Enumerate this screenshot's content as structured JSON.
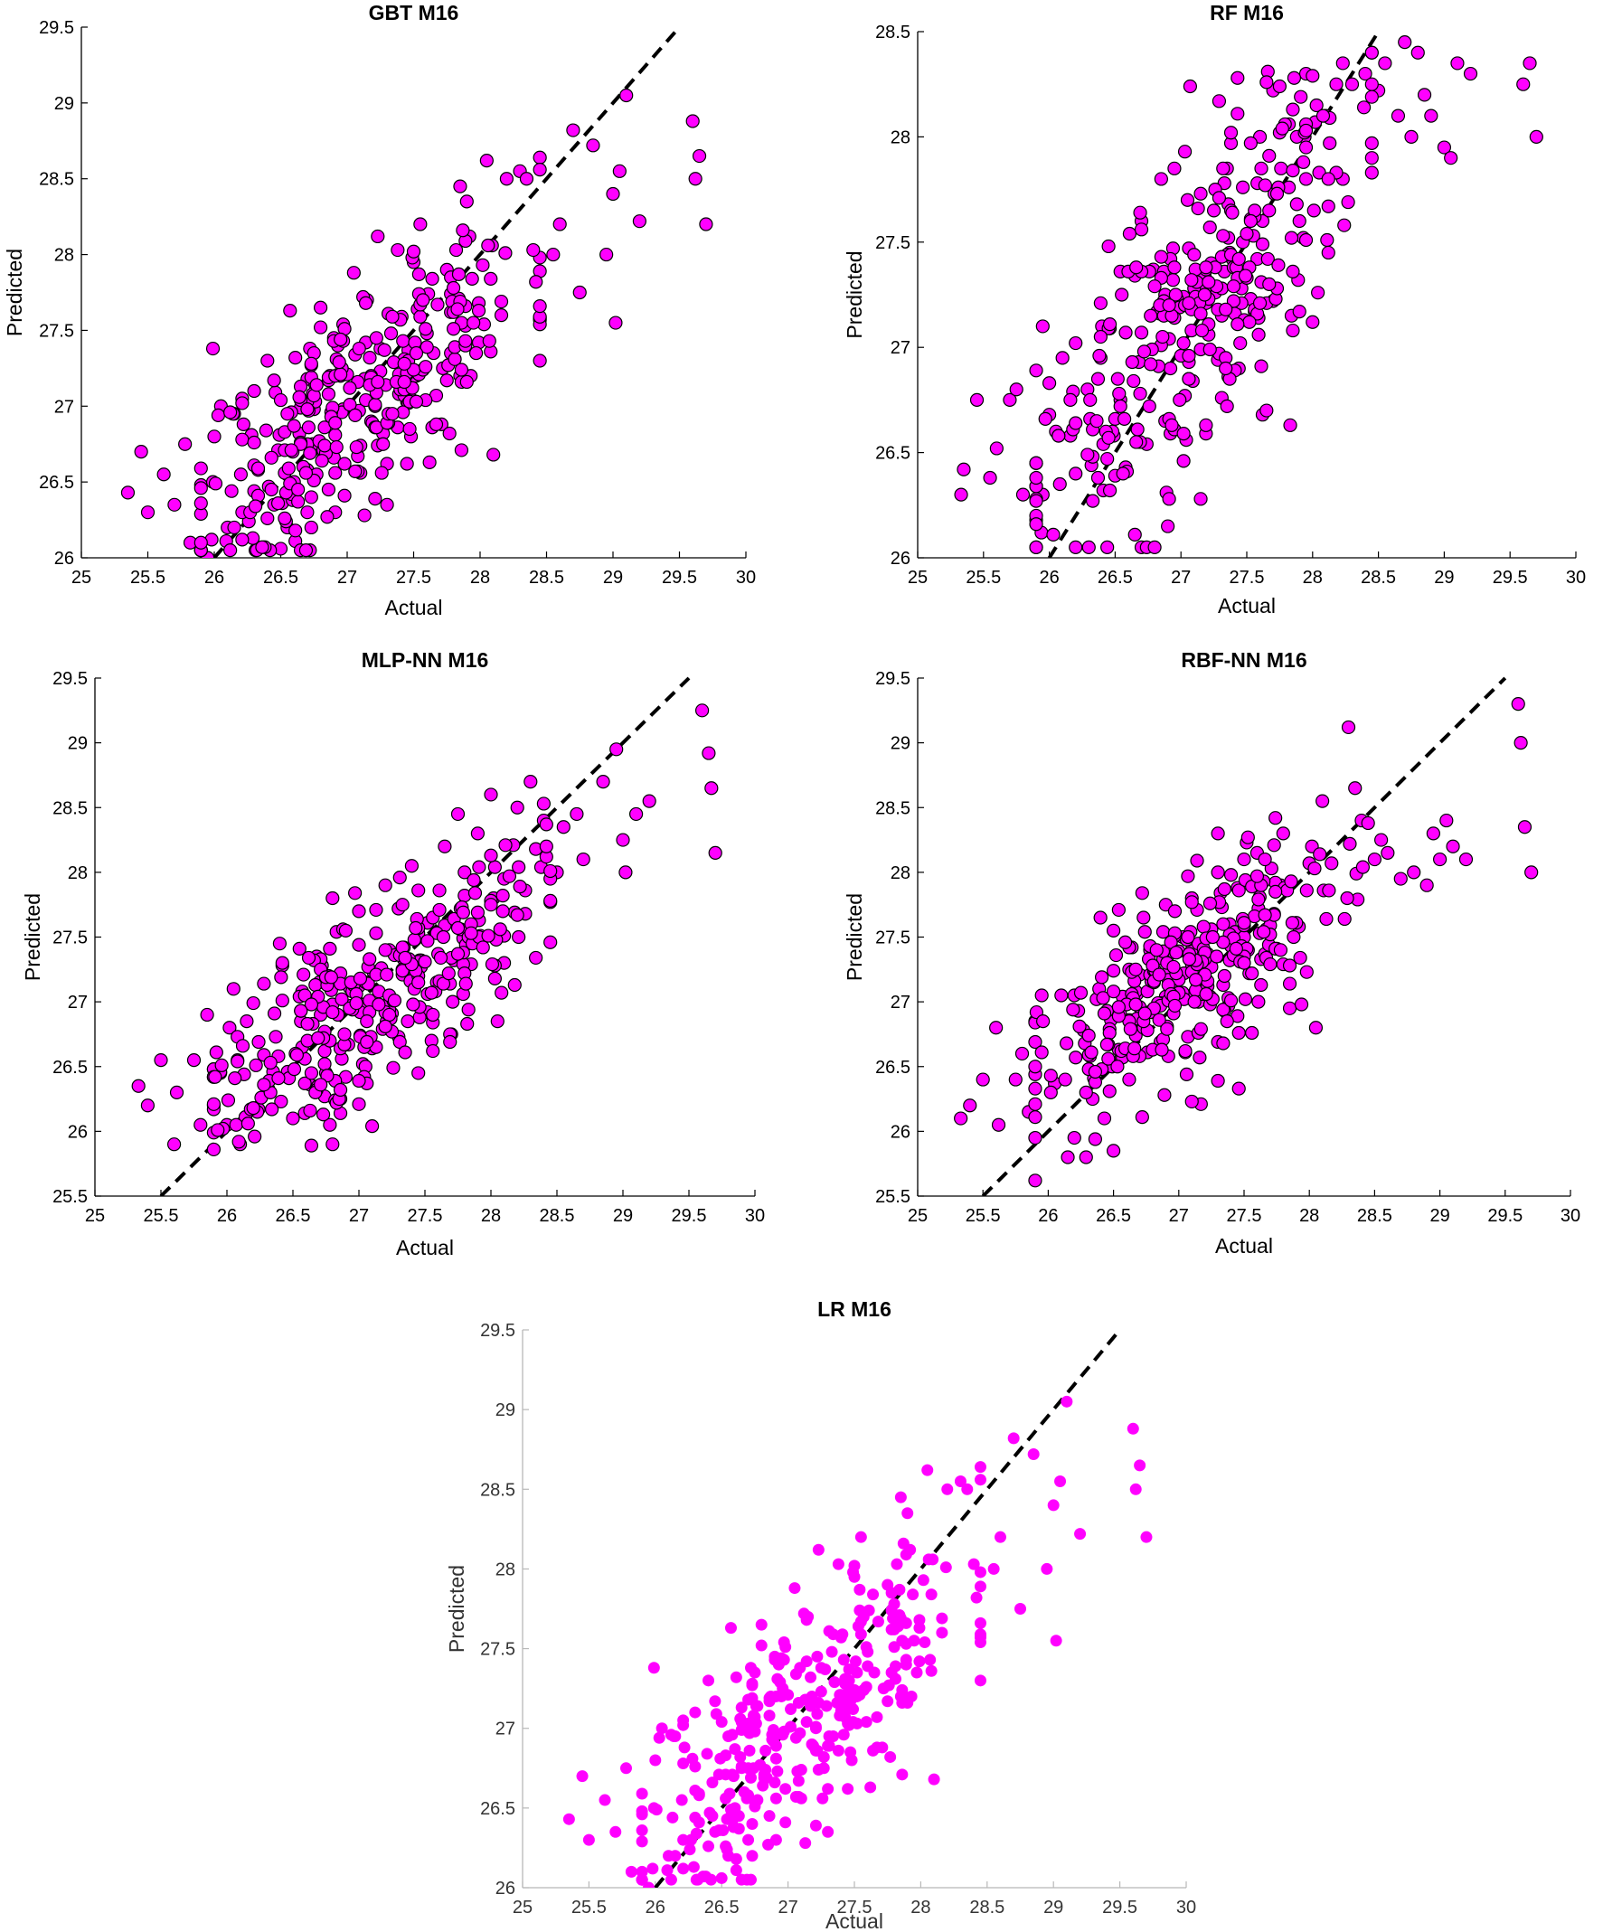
{
  "chart_data": [
    {
      "type": "scatter",
      "title": "GBT M16",
      "xlabel": "Actual",
      "ylabel": "Predicted",
      "xlim": [
        25,
        30
      ],
      "ylim": [
        26,
        29.5
      ],
      "xticks": [
        "25",
        "25.5",
        "26",
        "26.5",
        "27",
        "27.5",
        "28",
        "28.5",
        "29",
        "29.5",
        "30"
      ],
      "yticks": [
        "26",
        "26.5",
        "27",
        "27.5",
        "28",
        "28.5",
        "29",
        "29.5"
      ],
      "reference_line": "y = x (dashed)",
      "marker_color": "#ff00ff",
      "marker_edge": "#000000",
      "seed": 11,
      "points": [
        [
          25.35,
          26.43
        ],
        [
          25.45,
          26.7
        ],
        [
          25.5,
          26.3
        ],
        [
          25.62,
          26.55
        ],
        [
          25.7,
          26.35
        ],
        [
          25.78,
          26.75
        ],
        [
          25.82,
          26.1
        ],
        [
          25.9,
          26.48
        ],
        [
          25.95,
          26.0
        ],
        [
          26.0,
          26.8
        ],
        [
          26.05,
          27.0
        ],
        [
          26.1,
          26.2
        ],
        [
          26.15,
          26.95
        ],
        [
          26.2,
          26.55
        ],
        [
          26.3,
          27.1
        ],
        [
          26.4,
          27.3
        ],
        [
          26.45,
          26.35
        ],
        [
          26.55,
          26.2
        ],
        [
          26.7,
          27.18
        ],
        [
          26.72,
          26.05
        ],
        [
          26.8,
          27.65
        ],
        [
          26.9,
          27.45
        ],
        [
          27.05,
          27.88
        ],
        [
          27.15,
          27.7
        ],
        [
          27.45,
          26.62
        ],
        [
          27.5,
          27.95
        ],
        [
          27.55,
          28.2
        ],
        [
          27.75,
          27.9
        ],
        [
          27.85,
          28.45
        ],
        [
          27.9,
          28.35
        ],
        [
          28.05,
          28.62
        ],
        [
          28.1,
          26.68
        ],
        [
          28.2,
          28.5
        ],
        [
          28.3,
          28.55
        ],
        [
          28.35,
          28.5
        ],
        [
          28.45,
          27.3
        ],
        [
          28.55,
          28.0
        ],
        [
          28.6,
          28.2
        ],
        [
          28.7,
          28.82
        ],
        [
          28.75,
          27.75
        ],
        [
          28.85,
          28.72
        ],
        [
          28.95,
          28.0
        ],
        [
          29.0,
          28.4
        ],
        [
          29.02,
          27.55
        ],
        [
          29.05,
          28.55
        ],
        [
          29.1,
          29.05
        ],
        [
          29.2,
          28.22
        ],
        [
          29.6,
          28.88
        ],
        [
          29.62,
          28.5
        ],
        [
          29.65,
          28.65
        ],
        [
          29.7,
          28.2
        ]
      ]
    },
    {
      "type": "scatter",
      "title": "RF M16",
      "xlabel": "Actual",
      "ylabel": "Predicted",
      "xlim": [
        25,
        30
      ],
      "ylim": [
        26,
        28.5
      ],
      "xticks": [
        "25",
        "25.5",
        "26",
        "26.5",
        "27",
        "27.5",
        "28",
        "28.5",
        "29",
        "29.5",
        "30"
      ],
      "yticks": [
        "26",
        "26.5",
        "27",
        "27.5",
        "28",
        "28.5"
      ],
      "reference_line": "y = x (dashed)",
      "marker_color": "#ff00ff",
      "marker_edge": "#000000",
      "seed": 23,
      "points": [
        [
          25.33,
          26.3
        ],
        [
          25.35,
          26.42
        ],
        [
          25.45,
          26.75
        ],
        [
          25.55,
          26.38
        ],
        [
          25.6,
          26.52
        ],
        [
          25.7,
          26.75
        ],
        [
          25.75,
          26.8
        ],
        [
          25.8,
          26.3
        ],
        [
          25.9,
          26.45
        ],
        [
          25.95,
          27.1
        ],
        [
          25.95,
          26.3
        ],
        [
          26.05,
          26.6
        ],
        [
          26.1,
          26.95
        ],
        [
          26.2,
          26.4
        ],
        [
          26.4,
          27.1
        ],
        [
          26.45,
          27.48
        ],
        [
          26.55,
          27.25
        ],
        [
          26.7,
          27.6
        ],
        [
          26.85,
          27.8
        ],
        [
          26.95,
          27.85
        ],
        [
          27.05,
          27.7
        ],
        [
          27.35,
          27.85
        ],
        [
          27.6,
          28.0
        ],
        [
          27.7,
          28.22
        ],
        [
          27.95,
          28.3
        ],
        [
          28.0,
          28.29
        ],
        [
          28.1,
          28.1
        ],
        [
          28.3,
          28.25
        ],
        [
          28.4,
          28.3
        ],
        [
          28.5,
          28.22
        ],
        [
          28.55,
          28.35
        ],
        [
          28.65,
          28.1
        ],
        [
          28.7,
          28.45
        ],
        [
          28.75,
          28.0
        ],
        [
          28.8,
          28.4
        ],
        [
          28.85,
          28.2
        ],
        [
          28.9,
          28.1
        ],
        [
          29.0,
          27.95
        ],
        [
          29.05,
          27.9
        ],
        [
          29.1,
          28.35
        ],
        [
          29.2,
          28.3
        ],
        [
          29.6,
          28.25
        ],
        [
          29.65,
          28.35
        ],
        [
          29.7,
          28.0
        ]
      ]
    },
    {
      "type": "scatter",
      "title": "MLP-NN M16",
      "xlabel": "Actual",
      "ylabel": "Predicted",
      "xlim": [
        25,
        30
      ],
      "ylim": [
        25.5,
        29.5
      ],
      "xticks": [
        "25",
        "25.5",
        "26",
        "26.5",
        "27",
        "27.5",
        "28",
        "28.5",
        "29",
        "29.5",
        "30"
      ],
      "yticks": [
        "25.5",
        "26",
        "26.5",
        "27",
        "27.5",
        "28",
        "28.5",
        "29",
        "29.5"
      ],
      "reference_line": "y = x (dashed)",
      "marker_color": "#ff00ff",
      "marker_edge": "#000000",
      "seed": 37,
      "points": [
        [
          25.33,
          26.35
        ],
        [
          25.4,
          26.2
        ],
        [
          25.5,
          26.55
        ],
        [
          25.6,
          25.9
        ],
        [
          25.62,
          26.3
        ],
        [
          25.75,
          26.55
        ],
        [
          25.8,
          26.05
        ],
        [
          25.85,
          26.9
        ],
        [
          25.9,
          26.2
        ],
        [
          25.95,
          26.45
        ],
        [
          26.0,
          26.05
        ],
        [
          26.05,
          27.1
        ],
        [
          26.1,
          25.9
        ],
        [
          26.15,
          26.85
        ],
        [
          26.4,
          27.45
        ],
        [
          26.5,
          26.1
        ],
        [
          26.8,
          27.8
        ],
        [
          26.8,
          25.9
        ],
        [
          27.0,
          27.7
        ],
        [
          27.2,
          27.9
        ],
        [
          27.4,
          28.05
        ],
        [
          27.55,
          26.7
        ],
        [
          27.65,
          28.2
        ],
        [
          27.7,
          26.75
        ],
        [
          27.75,
          28.45
        ],
        [
          27.8,
          28.0
        ],
        [
          27.9,
          28.3
        ],
        [
          28.0,
          28.6
        ],
        [
          28.05,
          26.85
        ],
        [
          28.1,
          27.3
        ],
        [
          28.2,
          28.5
        ],
        [
          28.3,
          28.7
        ],
        [
          28.4,
          28.4
        ],
        [
          28.5,
          28.0
        ],
        [
          28.55,
          28.35
        ],
        [
          28.65,
          28.45
        ],
        [
          28.7,
          28.1
        ],
        [
          28.85,
          28.7
        ],
        [
          28.95,
          28.95
        ],
        [
          29.0,
          28.25
        ],
        [
          29.02,
          28.0
        ],
        [
          29.1,
          28.45
        ],
        [
          29.2,
          28.55
        ],
        [
          29.6,
          29.25
        ],
        [
          29.65,
          28.92
        ],
        [
          29.67,
          28.65
        ],
        [
          29.7,
          28.15
        ]
      ]
    },
    {
      "type": "scatter",
      "title": "RBF-NN M16",
      "xlabel": "Actual",
      "ylabel": "Predicted",
      "xlim": [
        25,
        30
      ],
      "ylim": [
        25.5,
        29.5
      ],
      "xticks": [
        "25",
        "25.5",
        "26",
        "26.5",
        "27",
        "27.5",
        "28",
        "28.5",
        "29",
        "29.5",
        "30"
      ],
      "yticks": [
        "25.5",
        "26",
        "26.5",
        "27",
        "27.5",
        "28",
        "28.5",
        "29",
        "29.5"
      ],
      "reference_line": "y = x (dashed)",
      "marker_color": "#ff00ff",
      "marker_edge": "#000000",
      "seed": 53,
      "points": [
        [
          25.33,
          26.1
        ],
        [
          25.4,
          26.2
        ],
        [
          25.5,
          26.4
        ],
        [
          25.6,
          26.8
        ],
        [
          25.62,
          26.05
        ],
        [
          25.75,
          26.4
        ],
        [
          25.8,
          26.6
        ],
        [
          25.85,
          26.15
        ],
        [
          25.9,
          25.95
        ],
        [
          25.95,
          27.05
        ],
        [
          26.1,
          27.05
        ],
        [
          26.15,
          25.8
        ],
        [
          26.2,
          27.05
        ],
        [
          26.4,
          27.65
        ],
        [
          26.5,
          27.55
        ],
        [
          26.5,
          25.85
        ],
        [
          26.9,
          27.75
        ],
        [
          27.1,
          27.8
        ],
        [
          27.3,
          28.0
        ],
        [
          27.5,
          28.1
        ],
        [
          27.6,
          28.15
        ],
        [
          27.8,
          28.3
        ],
        [
          27.85,
          26.95
        ],
        [
          28.05,
          26.8
        ],
        [
          28.1,
          28.55
        ],
        [
          28.3,
          29.12
        ],
        [
          28.35,
          28.65
        ],
        [
          28.4,
          28.4
        ],
        [
          28.5,
          28.1
        ],
        [
          28.55,
          28.25
        ],
        [
          28.6,
          28.15
        ],
        [
          28.7,
          27.95
        ],
        [
          28.8,
          28.0
        ],
        [
          28.9,
          27.9
        ],
        [
          28.95,
          28.3
        ],
        [
          29.0,
          28.1
        ],
        [
          29.05,
          28.4
        ],
        [
          29.1,
          28.2
        ],
        [
          29.2,
          28.1
        ],
        [
          29.6,
          29.3
        ],
        [
          29.62,
          29.0
        ],
        [
          29.65,
          28.35
        ],
        [
          29.7,
          28.0
        ]
      ]
    },
    {
      "type": "scatter",
      "title": "LR M16",
      "xlabel": "Actual",
      "ylabel": "Predicted",
      "xlim": [
        25,
        30
      ],
      "ylim": [
        26,
        29.5
      ],
      "xticks": [
        "25",
        "25.5",
        "26",
        "26.5",
        "27",
        "27.5",
        "28",
        "28.5",
        "29",
        "29.5",
        "30"
      ],
      "yticks": [
        "26",
        "26.5",
        "27",
        "27.5",
        "28",
        "28.5",
        "29",
        "29.5"
      ],
      "reference_line": "y = x (dashed)",
      "marker_color": "#ff00ff",
      "marker_edge": "none",
      "seed": 11,
      "points": [
        [
          25.35,
          26.43
        ],
        [
          25.45,
          26.7
        ],
        [
          25.5,
          26.3
        ],
        [
          25.62,
          26.55
        ],
        [
          25.7,
          26.35
        ],
        [
          25.78,
          26.75
        ],
        [
          25.82,
          26.1
        ],
        [
          25.9,
          26.48
        ],
        [
          25.95,
          26.0
        ],
        [
          26.0,
          26.8
        ],
        [
          26.05,
          27.0
        ],
        [
          26.1,
          26.2
        ],
        [
          26.15,
          26.95
        ],
        [
          26.2,
          26.55
        ],
        [
          26.3,
          27.1
        ],
        [
          26.4,
          27.3
        ],
        [
          26.45,
          26.35
        ],
        [
          26.55,
          26.2
        ],
        [
          26.7,
          27.18
        ],
        [
          26.72,
          26.05
        ],
        [
          26.8,
          27.65
        ],
        [
          26.9,
          27.45
        ],
        [
          27.05,
          27.88
        ],
        [
          27.15,
          27.7
        ],
        [
          27.45,
          26.62
        ],
        [
          27.5,
          27.95
        ],
        [
          27.55,
          28.2
        ],
        [
          27.75,
          27.9
        ],
        [
          27.85,
          28.45
        ],
        [
          27.9,
          28.35
        ],
        [
          28.05,
          28.62
        ],
        [
          28.1,
          26.68
        ],
        [
          28.2,
          28.5
        ],
        [
          28.3,
          28.55
        ],
        [
          28.35,
          28.5
        ],
        [
          28.45,
          27.3
        ],
        [
          28.55,
          28.0
        ],
        [
          28.6,
          28.2
        ],
        [
          28.7,
          28.82
        ],
        [
          28.75,
          27.75
        ],
        [
          28.85,
          28.72
        ],
        [
          28.95,
          28.0
        ],
        [
          29.0,
          28.4
        ],
        [
          29.02,
          27.55
        ],
        [
          29.05,
          28.55
        ],
        [
          29.1,
          29.05
        ],
        [
          29.2,
          28.22
        ],
        [
          29.6,
          28.88
        ],
        [
          29.62,
          28.5
        ],
        [
          29.65,
          28.65
        ],
        [
          29.7,
          28.2
        ]
      ]
    }
  ]
}
